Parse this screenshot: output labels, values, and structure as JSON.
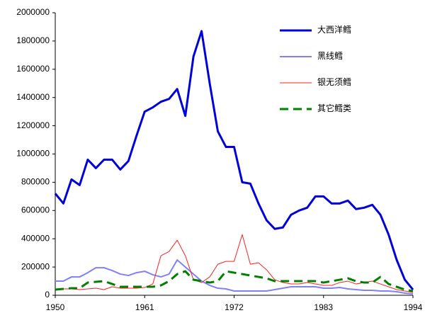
{
  "chart_data": {
    "type": "line",
    "x": [
      1950,
      1951,
      1952,
      1953,
      1954,
      1955,
      1956,
      1957,
      1958,
      1959,
      1960,
      1961,
      1962,
      1963,
      1964,
      1965,
      1966,
      1967,
      1968,
      1969,
      1970,
      1971,
      1972,
      1973,
      1974,
      1975,
      1976,
      1977,
      1978,
      1979,
      1980,
      1981,
      1982,
      1983,
      1984,
      1985,
      1986,
      1987,
      1988,
      1989,
      1990,
      1991,
      1992,
      1993,
      1994
    ],
    "series": [
      {
        "name": "大西洋鳕",
        "color": "#0000dd",
        "linewidth": 3,
        "dash": false,
        "values": [
          720000,
          650000,
          820000,
          780000,
          960000,
          900000,
          960000,
          960000,
          890000,
          950000,
          1130000,
          1300000,
          1330000,
          1370000,
          1390000,
          1460000,
          1270000,
          1690000,
          1870000,
          1500000,
          1160000,
          1050000,
          1050000,
          800000,
          790000,
          650000,
          530000,
          470000,
          480000,
          570000,
          600000,
          620000,
          700000,
          700000,
          650000,
          650000,
          670000,
          610000,
          620000,
          640000,
          570000,
          430000,
          250000,
          110000,
          40000
        ]
      },
      {
        "name": "黑线鳕",
        "color": "#8080ff",
        "linewidth": 2,
        "dash": false,
        "values": [
          100000,
          100000,
          130000,
          130000,
          160000,
          195000,
          195000,
          175000,
          150000,
          140000,
          160000,
          170000,
          145000,
          130000,
          150000,
          250000,
          200000,
          150000,
          100000,
          70000,
          50000,
          45000,
          30000,
          30000,
          30000,
          30000,
          30000,
          40000,
          50000,
          60000,
          60000,
          60000,
          60000,
          50000,
          50000,
          55000,
          45000,
          40000,
          35000,
          35000,
          30000,
          30000,
          25000,
          15000,
          10000
        ]
      },
      {
        "name": "银无须鳕",
        "color": "#ff2020",
        "linewidth": 1,
        "dash": false,
        "values": [
          40000,
          45000,
          45000,
          40000,
          45000,
          50000,
          40000,
          60000,
          50000,
          50000,
          50000,
          55000,
          80000,
          280000,
          310000,
          390000,
          280000,
          110000,
          90000,
          130000,
          220000,
          240000,
          240000,
          430000,
          220000,
          230000,
          180000,
          110000,
          90000,
          80000,
          80000,
          90000,
          80000,
          70000,
          70000,
          90000,
          100000,
          80000,
          90000,
          100000,
          80000,
          60000,
          40000,
          30000,
          20000
        ]
      },
      {
        "name": "其它鳕类",
        "color": "#008000",
        "linewidth": 3,
        "dash": true,
        "values": [
          40000,
          45000,
          50000,
          50000,
          90000,
          95000,
          100000,
          80000,
          60000,
          60000,
          60000,
          60000,
          60000,
          70000,
          100000,
          150000,
          170000,
          110000,
          100000,
          90000,
          100000,
          170000,
          160000,
          150000,
          140000,
          130000,
          120000,
          100000,
          100000,
          100000,
          100000,
          100000,
          100000,
          90000,
          100000,
          110000,
          120000,
          100000,
          90000,
          90000,
          130000,
          80000,
          60000,
          40000,
          30000
        ]
      }
    ],
    "xlim": [
      1950,
      1994
    ],
    "xticks": [
      1950,
      1961,
      1972,
      1983,
      1994
    ],
    "ylim": [
      0,
      2000000
    ],
    "yticks": [
      0,
      200000,
      400000,
      600000,
      800000,
      1000000,
      1200000,
      1400000,
      1600000,
      1800000,
      2000000
    ],
    "grid": false,
    "legend": "upper right"
  }
}
